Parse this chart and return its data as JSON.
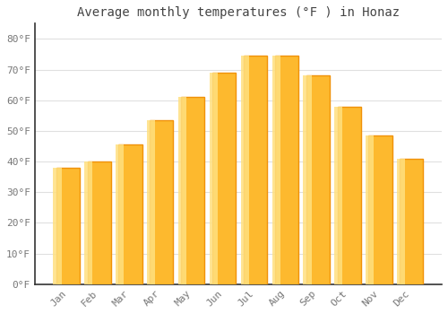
{
  "title": "Average monthly temperatures (°F ) in Honaz",
  "months": [
    "Jan",
    "Feb",
    "Mar",
    "Apr",
    "May",
    "Jun",
    "Jul",
    "Aug",
    "Sep",
    "Oct",
    "Nov",
    "Dec"
  ],
  "values": [
    38,
    40,
    45.5,
    53.5,
    61,
    69,
    74.5,
    74.5,
    68,
    58,
    48.5,
    41
  ],
  "bar_color_main": "#FDB92E",
  "bar_color_edge": "#F0920A",
  "bar_highlight": "#FFE080",
  "background_color": "#FFFFFF",
  "plot_bg_color": "#FFFFFF",
  "grid_color": "#E0E0E0",
  "ylim": [
    0,
    85
  ],
  "yticks": [
    0,
    10,
    20,
    30,
    40,
    50,
    60,
    70,
    80
  ],
  "ytick_labels": [
    "0°F",
    "10°F",
    "20°F",
    "30°F",
    "40°F",
    "50°F",
    "60°F",
    "70°F",
    "80°F"
  ],
  "title_fontsize": 10,
  "tick_fontsize": 8,
  "title_color": "#444444",
  "tick_color": "#777777",
  "bar_width": 0.75
}
